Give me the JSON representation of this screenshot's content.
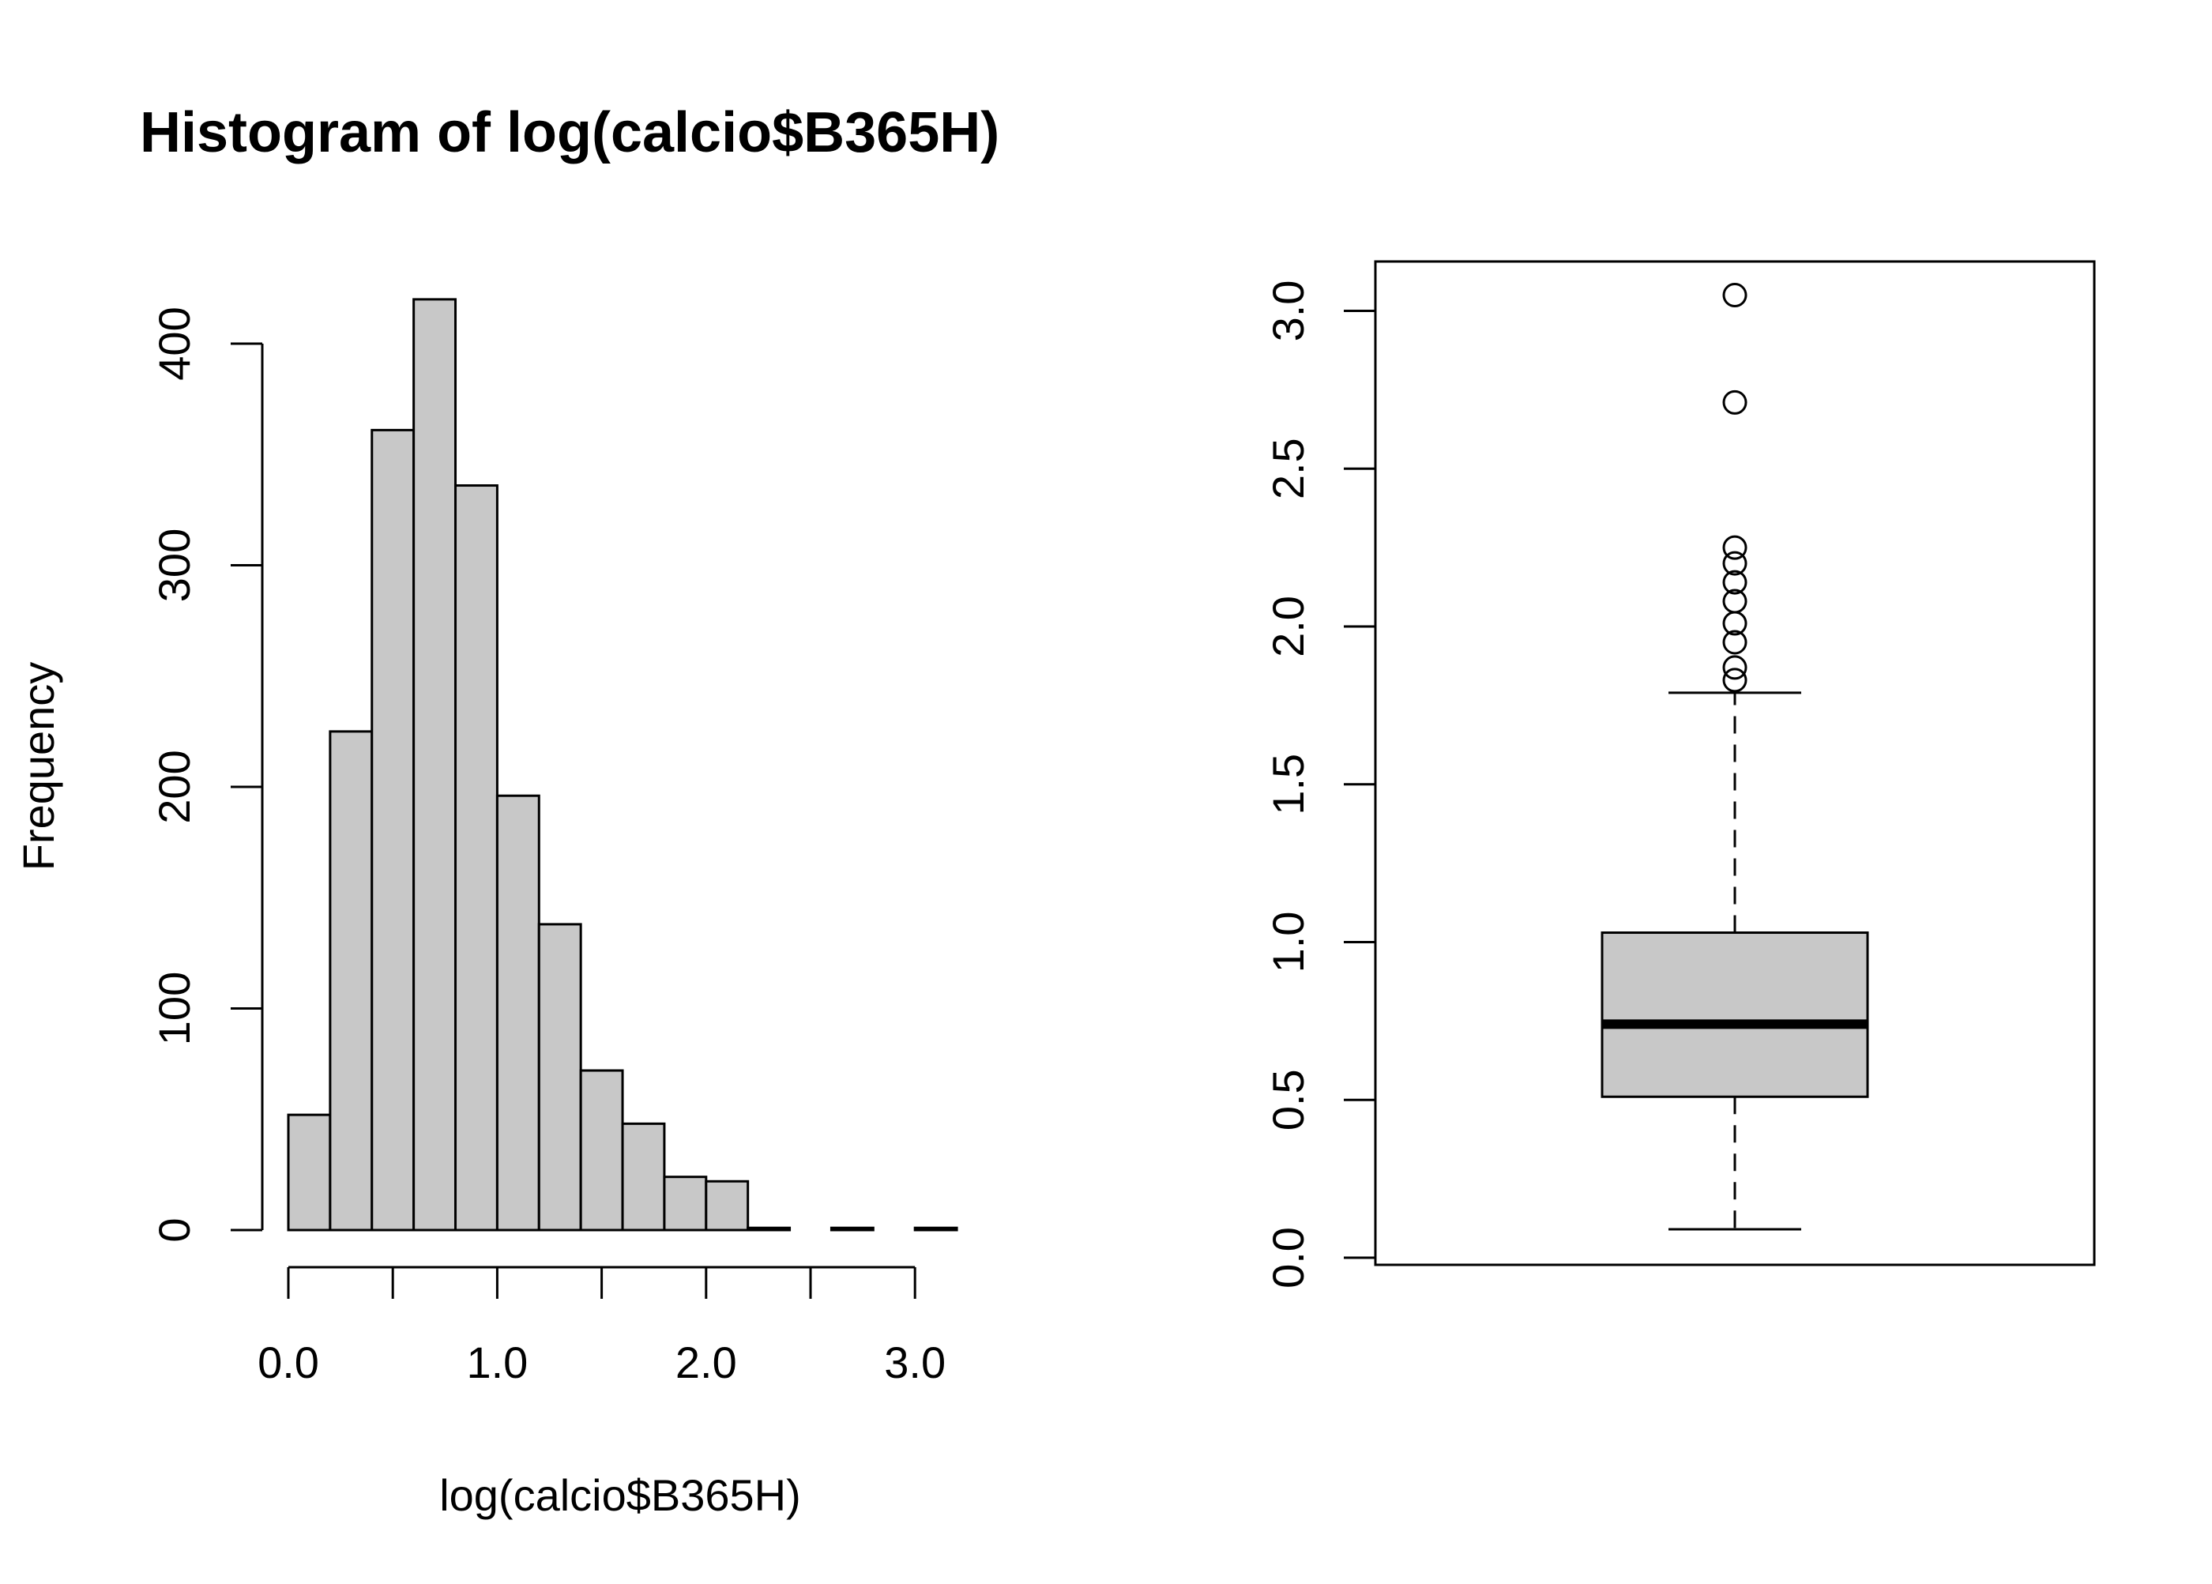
{
  "chart_data": [
    {
      "type": "bar",
      "subtype": "histogram",
      "title": "Histogram of log(calcio$B365H)",
      "xlabel": "log(calcio$B365H)",
      "ylabel": "Frequency",
      "bin_width": 0.2,
      "bin_starts": [
        0.0,
        0.2,
        0.4,
        0.6,
        0.8,
        1.0,
        1.2,
        1.4,
        1.6,
        1.8,
        2.0,
        2.2,
        2.4,
        2.6,
        2.8,
        3.0
      ],
      "values": [
        52,
        225,
        361,
        420,
        336,
        196,
        138,
        72,
        48,
        24,
        22,
        1,
        0,
        1,
        0,
        1
      ],
      "xlim": [
        0.0,
        3.2
      ],
      "ylim": [
        0,
        420
      ],
      "x_ticks": [
        0.0,
        0.5,
        1.0,
        1.5,
        2.0,
        2.5,
        3.0
      ],
      "x_tick_labels": [
        "0.0",
        "1.0",
        "2.0",
        "3.0"
      ],
      "x_tick_label_values": [
        0.0,
        1.0,
        2.0,
        3.0
      ],
      "y_ticks": [
        0,
        100,
        200,
        300,
        400
      ],
      "y_tick_labels": [
        "0",
        "100",
        "200",
        "300",
        "400"
      ],
      "bar_color": "#c8c8c8",
      "grid": false
    },
    {
      "type": "boxplot",
      "min_whisker": 0.09,
      "q1": 0.51,
      "median": 0.74,
      "q3": 1.03,
      "max_whisker": 1.79,
      "outliers": [
        1.83,
        1.87,
        1.95,
        2.01,
        2.08,
        2.14,
        2.2,
        2.25,
        2.71,
        3.05
      ],
      "ylim": [
        0.0,
        3.2
      ],
      "y_ticks": [
        0.0,
        0.5,
        1.0,
        1.5,
        2.0,
        2.5,
        3.0
      ],
      "y_tick_labels": [
        "0.0",
        "0.5",
        "1.0",
        "1.5",
        "2.0",
        "2.5",
        "3.0"
      ],
      "box_color": "#c8c8c8",
      "grid": false
    }
  ]
}
